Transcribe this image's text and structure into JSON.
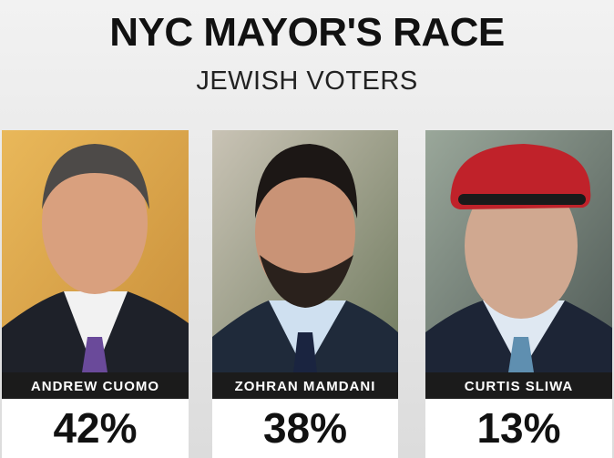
{
  "header": {
    "title": "NYC MAYOR'S RACE",
    "subtitle": "JEWISH VOTERS"
  },
  "candidates": [
    {
      "name": "ANDREW CUOMO",
      "value": "42%"
    },
    {
      "name": "ZOHRAN MAMDANI",
      "value": "38%"
    },
    {
      "name": "CURTIS SLIWA",
      "value": "13%"
    }
  ]
}
